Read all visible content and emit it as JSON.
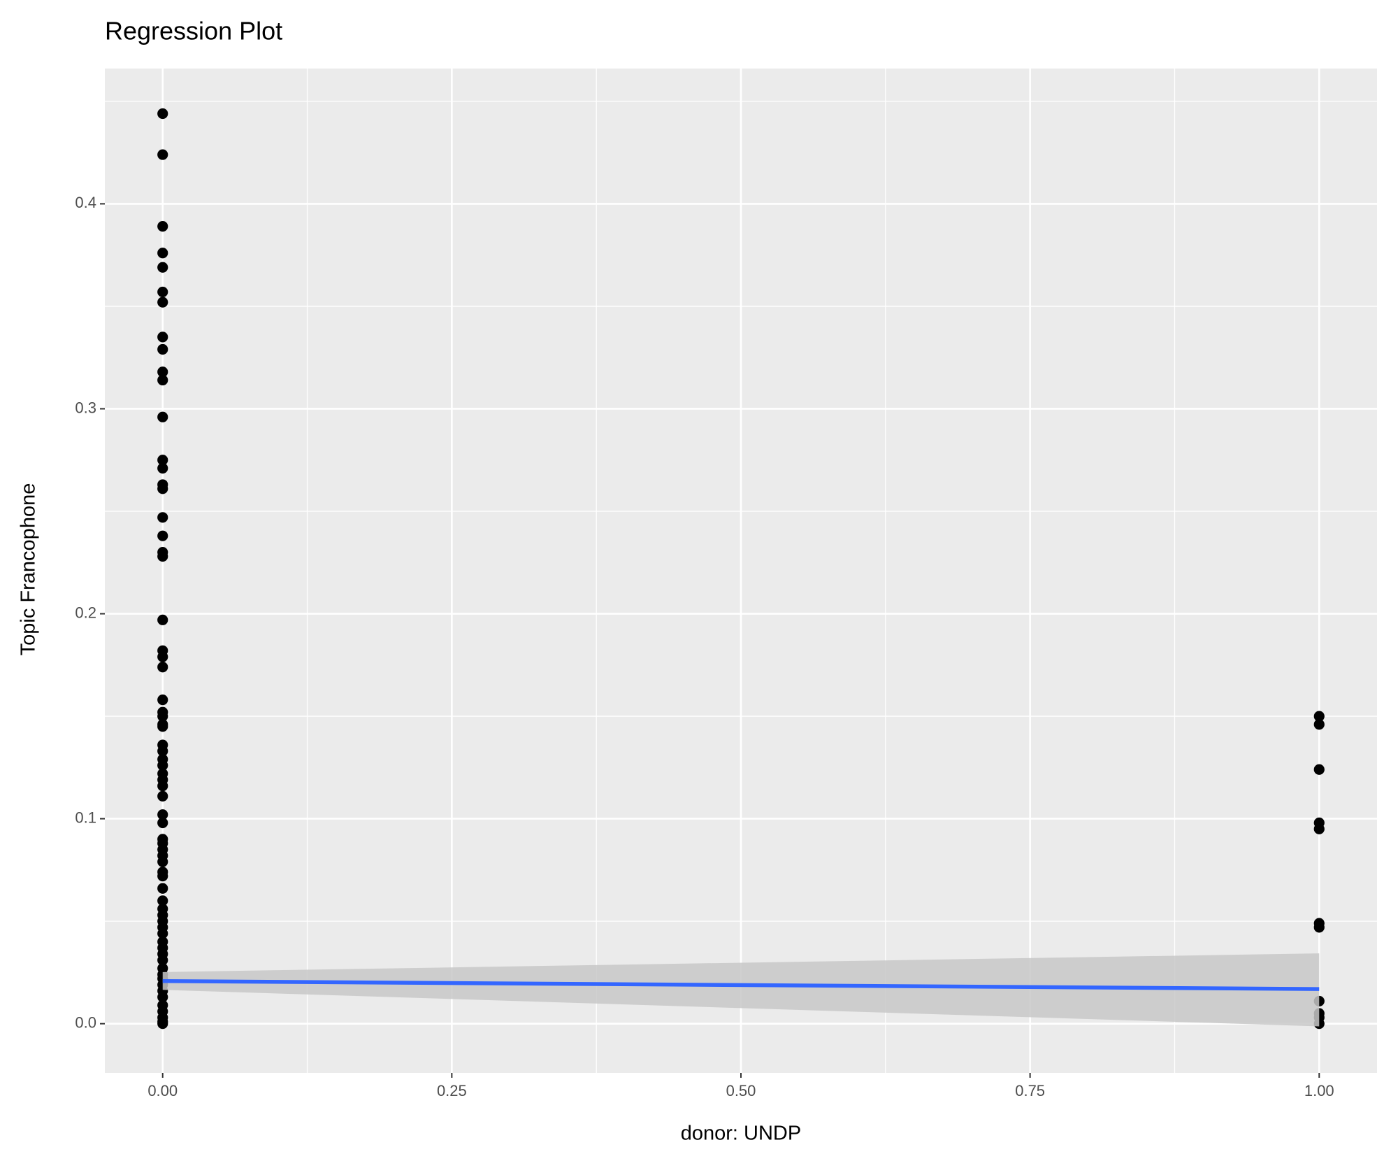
{
  "chart_data": {
    "type": "scatter",
    "title": "Regression Plot",
    "x_label": "donor: UNDP",
    "y_label": "Topic Francophone",
    "xlim": [
      -0.05,
      1.05
    ],
    "ylim": [
      -0.024,
      0.466
    ],
    "xticks": [
      {
        "value": 0,
        "label": "0.00"
      },
      {
        "value": 0.25,
        "label": "0.25"
      },
      {
        "value": 0.5,
        "label": "0.50"
      },
      {
        "value": 0.75,
        "label": "0.75"
      },
      {
        "value": 1,
        "label": "1.00"
      }
    ],
    "yticks": [
      {
        "value": 0,
        "label": "0.0"
      },
      0.1,
      0.2,
      0.3,
      0.4
    ],
    "x_minor_gridlines": [
      0.125,
      0.375,
      0.625,
      0.875
    ],
    "y_minor_gridlines": [
      0.05,
      0.15,
      0.25,
      0.35,
      0.45
    ],
    "grid": true,
    "series": [
      {
        "color": "#000000",
        "x": [
          0,
          0,
          0,
          0,
          0,
          0,
          0,
          0,
          0,
          0,
          0,
          0,
          0,
          0,
          0,
          0,
          0,
          0,
          0,
          0,
          0,
          0,
          0,
          0,
          0,
          0,
          0,
          0,
          0,
          0,
          0,
          0,
          0,
          0,
          0,
          0,
          0,
          0,
          0,
          0,
          0,
          0,
          0,
          0,
          0,
          0,
          0,
          0,
          0,
          0,
          0,
          0,
          0,
          0,
          0,
          0,
          0,
          0,
          0,
          0,
          0,
          0,
          0,
          0,
          0,
          0,
          0,
          0,
          1,
          1,
          1,
          1,
          1,
          1,
          1,
          1,
          1,
          1,
          1
        ],
        "y": [
          0.444,
          0.424,
          0.389,
          0.376,
          0.369,
          0.357,
          0.352,
          0.335,
          0.329,
          0.318,
          0.314,
          0.296,
          0.275,
          0.271,
          0.263,
          0.261,
          0.247,
          0.238,
          0.23,
          0.228,
          0.197,
          0.182,
          0.179,
          0.174,
          0.158,
          0.152,
          0.15,
          0.146,
          0.145,
          0.136,
          0.133,
          0.129,
          0.126,
          0.122,
          0.119,
          0.116,
          0.111,
          0.102,
          0.098,
          0.09,
          0.088,
          0.085,
          0.082,
          0.079,
          0.074,
          0.072,
          0.066,
          0.06,
          0.056,
          0.053,
          0.05,
          0.047,
          0.044,
          0.04,
          0.037,
          0.034,
          0.031,
          0.027,
          0.024,
          0.022,
          0.019,
          0.016,
          0.013,
          0.009,
          0.006,
          0.003,
          0.001,
          0.0,
          0.15,
          0.146,
          0.124,
          0.098,
          0.095,
          0.049,
          0.047,
          0.011,
          0.005,
          0.003,
          0.0
        ]
      }
    ],
    "fit": {
      "color": "#3366ff",
      "band_color": "#c8c8c8",
      "x": [
        0,
        1
      ],
      "y": [
        0.0208,
        0.0169
      ],
      "lower": [
        0.0165,
        -0.0013
      ],
      "upper": [
        0.0252,
        0.0343
      ]
    }
  }
}
